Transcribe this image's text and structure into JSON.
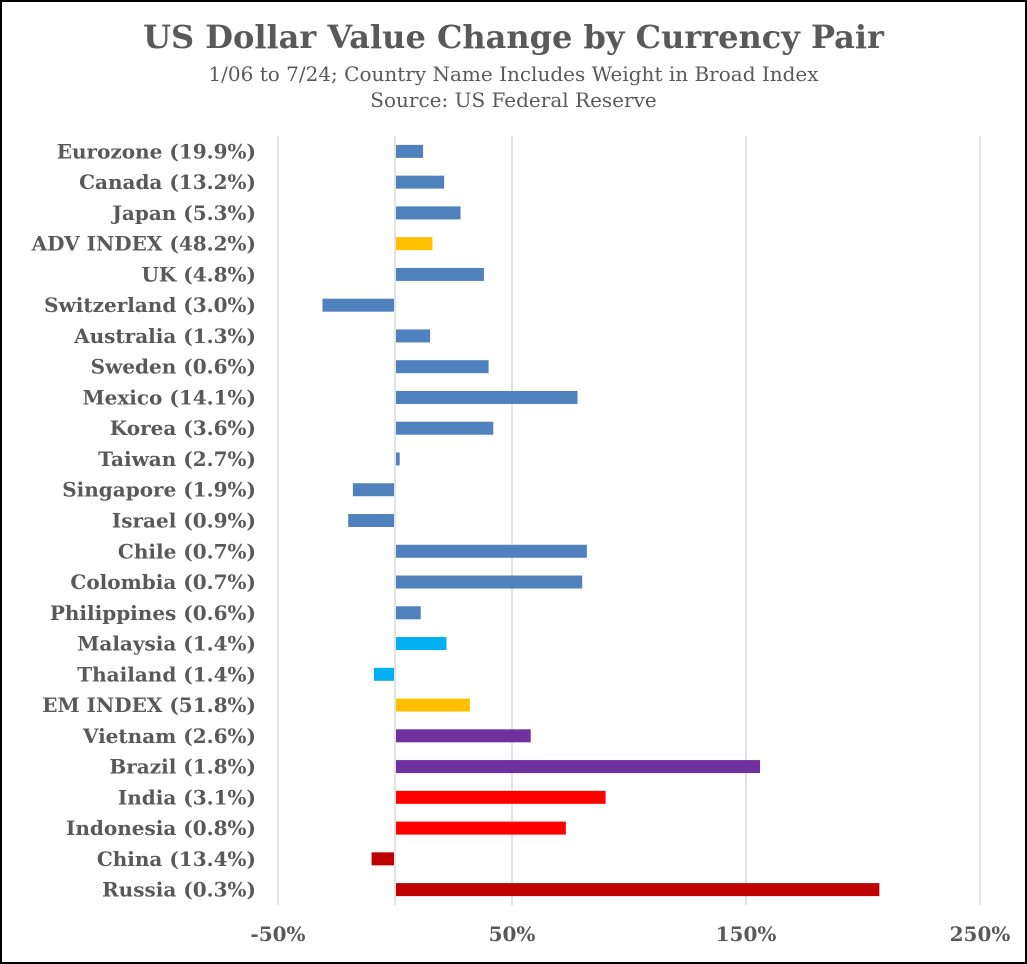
{
  "chart_data": {
    "type": "bar",
    "orientation": "horizontal",
    "title": "US Dollar Value Change by Currency Pair",
    "subtitle": "1/06 to 7/24; Country Name Includes Weight in Broad Index",
    "source": "Source: US Federal Reserve",
    "categories": [
      "Eurozone (19.9%)",
      "Canada (13.2%)",
      "Japan (5.3%)",
      "ADV INDEX (48.2%)",
      "UK (4.8%)",
      "Switzerland (3.0%)",
      "Australia (1.3%)",
      "Sweden (0.6%)",
      "Mexico (14.1%)",
      "Korea (3.6%)",
      "Taiwan (2.7%)",
      "Singapore (1.9%)",
      "Israel (0.9%)",
      "Chile (0.7%)",
      "Colombia (0.7%)",
      "Philippines (0.6%)",
      "Malaysia (1.4%)",
      "Thailand (1.4%)",
      "EM INDEX (51.8%)",
      "Vietnam (2.6%)",
      "Brazil (1.8%)",
      "India (3.1%)",
      "Indonesia (0.8%)",
      "China (13.4%)",
      "Russia (0.3%)"
    ],
    "values": [
      12,
      21,
      28,
      16,
      38,
      -31,
      15,
      40,
      78,
      42,
      2,
      -18,
      -20,
      82,
      80,
      11,
      22,
      -9,
      32,
      58,
      156,
      90,
      73,
      -10,
      207
    ],
    "colors": [
      "#4f81bd",
      "#4f81bd",
      "#4f81bd",
      "#ffc000",
      "#4f81bd",
      "#4f81bd",
      "#4f81bd",
      "#4f81bd",
      "#4f81bd",
      "#4f81bd",
      "#4f81bd",
      "#4f81bd",
      "#4f81bd",
      "#4f81bd",
      "#4f81bd",
      "#4f81bd",
      "#00b0f0",
      "#00b0f0",
      "#ffc000",
      "#7030a0",
      "#7030a0",
      "#ff0000",
      "#ff0000",
      "#c00000",
      "#c00000"
    ],
    "xlim": [
      -50,
      250
    ],
    "xticks": [
      -50,
      50,
      150,
      250
    ],
    "xtick_labels": [
      "-50%",
      "50%",
      "150%",
      "250%"
    ],
    "grid": true
  }
}
